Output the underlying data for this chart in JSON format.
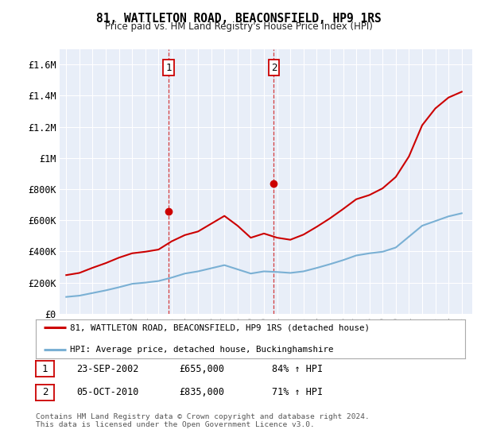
{
  "title": "81, WATTLETON ROAD, BEACONSFIELD, HP9 1RS",
  "subtitle": "Price paid vs. HM Land Registry's House Price Index (HPI)",
  "background_color": "#ffffff",
  "plot_bg_color": "#e8eef8",
  "grid_color": "#ffffff",
  "red_line_color": "#cc0000",
  "blue_line_color": "#7ab0d4",
  "legend_entries": [
    "81, WATTLETON ROAD, BEACONSFIELD, HP9 1RS (detached house)",
    "HPI: Average price, detached house, Buckinghamshire"
  ],
  "table_rows": [
    [
      "1",
      "23-SEP-2002",
      "£655,000",
      "84% ↑ HPI"
    ],
    [
      "2",
      "05-OCT-2010",
      "£835,000",
      "71% ↑ HPI"
    ]
  ],
  "footer": "Contains HM Land Registry data © Crown copyright and database right 2024.\nThis data is licensed under the Open Government Licence v3.0.",
  "ylim": [
    0,
    1700000
  ],
  "yticks": [
    0,
    200000,
    400000,
    600000,
    800000,
    1000000,
    1200000,
    1400000,
    1600000
  ],
  "ytick_labels": [
    "£0",
    "£200K",
    "£400K",
    "£600K",
    "£800K",
    "£1M",
    "£1.2M",
    "£1.4M",
    "£1.6M"
  ],
  "years": [
    1995,
    1996,
    1997,
    1998,
    1999,
    2000,
    2001,
    2002,
    2003,
    2004,
    2005,
    2006,
    2007,
    2008,
    2009,
    2010,
    2011,
    2012,
    2013,
    2014,
    2015,
    2016,
    2017,
    2018,
    2019,
    2020,
    2021,
    2022,
    2023,
    2024,
    2025
  ],
  "red_values": [
    248000,
    262000,
    295000,
    325000,
    360000,
    388000,
    398000,
    412000,
    465000,
    505000,
    528000,
    578000,
    628000,
    565000,
    488000,
    515000,
    488000,
    475000,
    508000,
    558000,
    612000,
    672000,
    735000,
    762000,
    805000,
    878000,
    1010000,
    1210000,
    1318000,
    1388000,
    1425000
  ],
  "blue_values": [
    108000,
    116000,
    133000,
    150000,
    170000,
    192000,
    200000,
    210000,
    232000,
    258000,
    272000,
    292000,
    312000,
    285000,
    258000,
    272000,
    268000,
    262000,
    272000,
    294000,
    318000,
    344000,
    374000,
    388000,
    398000,
    425000,
    495000,
    565000,
    595000,
    625000,
    645000
  ],
  "m1x": 2002.75,
  "m1y": 655000,
  "m2x": 2010.75,
  "m2y": 835000,
  "xlim_left": 1994.5,
  "xlim_right": 2025.8
}
